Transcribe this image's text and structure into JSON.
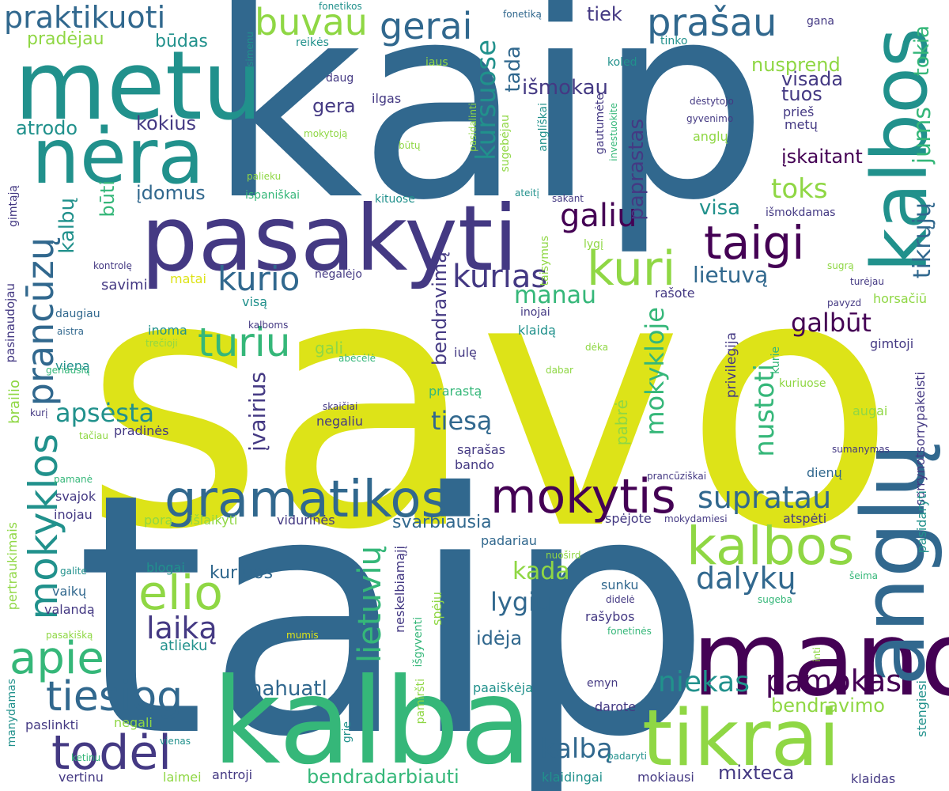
{
  "palette": {
    "yellow": "#dde318",
    "lime": "#8fd744",
    "green": "#35b779",
    "teal": "#21918c",
    "blue": "#31688e",
    "indigo": "#443983",
    "purple": "#440154"
  },
  "words": [
    {
      "text": "savo",
      "c": "yellow"
    },
    {
      "text": "taip",
      "c": "blue"
    },
    {
      "text": "kaip",
      "c": "blue"
    },
    {
      "text": "kalba",
      "c": "green"
    },
    {
      "text": "mano",
      "c": "purple"
    },
    {
      "text": "pasakyti",
      "c": "indigo"
    },
    {
      "text": "metu",
      "c": "teal"
    },
    {
      "text": "nėra",
      "c": "teal"
    },
    {
      "text": "anglų",
      "c": "blue"
    },
    {
      "text": "kalbos",
      "c": "teal"
    },
    {
      "text": "tikrai",
      "c": "lime"
    },
    {
      "text": "gramatikos",
      "c": "blue"
    },
    {
      "text": "mokytis",
      "c": "purple"
    },
    {
      "text": "kalbos",
      "c": "lime"
    },
    {
      "text": "taigi",
      "c": "purple"
    },
    {
      "text": "kuri",
      "c": "lime"
    },
    {
      "text": "todėl",
      "c": "indigo"
    },
    {
      "text": "tiesiog",
      "c": "blue"
    },
    {
      "text": "elio",
      "c": "lime"
    },
    {
      "text": "apie",
      "c": "green"
    },
    {
      "text": "turiu",
      "c": "green"
    },
    {
      "text": "mokyklos",
      "c": "teal"
    },
    {
      "text": "prancūzų",
      "c": "blue"
    },
    {
      "text": "gerai",
      "c": "blue"
    },
    {
      "text": "prašau",
      "c": "blue"
    },
    {
      "text": "buvau",
      "c": "lime"
    },
    {
      "text": "praktikuoti",
      "c": "blue"
    },
    {
      "text": "pamokas",
      "c": "purple"
    },
    {
      "text": "kurio",
      "c": "blue"
    },
    {
      "text": "kurias",
      "c": "indigo"
    },
    {
      "text": "galiu",
      "c": "purple"
    },
    {
      "text": "supratau",
      "c": "blue"
    },
    {
      "text": "dalykų",
      "c": "blue"
    },
    {
      "text": "niekas",
      "c": "teal"
    },
    {
      "text": "lietuvių",
      "c": "green"
    },
    {
      "text": "laiką",
      "c": "indigo"
    },
    {
      "text": "kalbą",
      "c": "blue"
    },
    {
      "text": "kursuose",
      "c": "teal"
    },
    {
      "text": "mokykloje",
      "c": "green"
    },
    {
      "text": "nustoti",
      "c": "green"
    },
    {
      "text": "galbūt",
      "c": "purple"
    },
    {
      "text": "tikrųjų",
      "c": "blue"
    },
    {
      "text": "jums",
      "c": "green"
    },
    {
      "text": "tokia",
      "c": "green"
    },
    {
      "text": "apsėsta",
      "c": "teal"
    },
    {
      "text": "tiesą",
      "c": "blue"
    },
    {
      "text": "kada",
      "c": "lime"
    },
    {
      "text": "lygiu",
      "c": "blue"
    },
    {
      "text": "manau",
      "c": "green"
    },
    {
      "text": "paprastas",
      "c": "indigo"
    },
    {
      "text": "įvairius",
      "c": "indigo"
    },
    {
      "text": "toks",
      "c": "lime"
    },
    {
      "text": "nahuatl",
      "c": "blue"
    },
    {
      "text": "mixteca",
      "c": "indigo"
    },
    {
      "text": "bendravimo",
      "c": "lime"
    },
    {
      "text": "bendradarbiauti",
      "c": "green"
    },
    {
      "text": "visa",
      "c": "teal"
    },
    {
      "text": "lietuvą",
      "c": "blue"
    },
    {
      "text": "išmokau",
      "c": "indigo"
    },
    {
      "text": "tiek",
      "c": "indigo"
    },
    {
      "text": "tada",
      "c": "blue"
    },
    {
      "text": "nusprend",
      "c": "lime"
    },
    {
      "text": "visada",
      "c": "indigo"
    },
    {
      "text": "tuos",
      "c": "indigo"
    },
    {
      "text": "įskaitant",
      "c": "purple"
    },
    {
      "text": "kokius",
      "c": "indigo"
    },
    {
      "text": "atrodo",
      "c": "teal"
    },
    {
      "text": "pradėjau",
      "c": "lime"
    },
    {
      "text": "būdas",
      "c": "teal"
    },
    {
      "text": "įdomus",
      "c": "blue"
    },
    {
      "text": "būti",
      "c": "green"
    },
    {
      "text": "kalbų",
      "c": "teal"
    },
    {
      "text": "gera",
      "c": "indigo"
    },
    {
      "text": "bendravimą",
      "c": "indigo"
    },
    {
      "text": "idėja",
      "c": "blue"
    },
    {
      "text": "kuriuos",
      "c": "blue"
    },
    {
      "text": "svarbiausia",
      "c": "blue"
    },
    {
      "text": "kurie",
      "c": "green"
    },
    {
      "text": "savimi",
      "c": "indigo"
    },
    {
      "text": "brailio",
      "c": "lime"
    },
    {
      "text": "vaikų",
      "c": "blue"
    },
    {
      "text": "valandą",
      "c": "indigo"
    },
    {
      "text": "atlieku",
      "c": "teal"
    },
    {
      "text": "antroji",
      "c": "indigo"
    },
    {
      "text": "vertinu",
      "c": "indigo"
    },
    {
      "text": "laimei",
      "c": "lime"
    },
    {
      "text": "paslinkti",
      "c": "indigo"
    },
    {
      "text": "negali",
      "c": "lime"
    },
    {
      "text": "gali",
      "c": "lime"
    },
    {
      "text": "inoma",
      "c": "teal"
    },
    {
      "text": "pabrė",
      "c": "lime"
    },
    {
      "text": "privilegija",
      "c": "indigo"
    },
    {
      "text": "kuriuose",
      "c": "lime"
    },
    {
      "text": "gimtoji",
      "c": "indigo"
    },
    {
      "text": "augai",
      "c": "lime"
    },
    {
      "text": "sorrynotsorrypakeisti",
      "c": "indigo"
    },
    {
      "text": "stengiesi",
      "c": "teal"
    },
    {
      "text": "pasidaryti",
      "c": "teal"
    },
    {
      "text": "sunku",
      "c": "blue"
    },
    {
      "text": "rašybos",
      "c": "indigo"
    },
    {
      "text": "darote",
      "c": "indigo"
    },
    {
      "text": "emyn",
      "c": "indigo"
    },
    {
      "text": "paaiškėja",
      "c": "teal"
    },
    {
      "text": "klaidas",
      "c": "indigo"
    },
    {
      "text": "mokiausi",
      "c": "indigo"
    },
    {
      "text": "klaidingai",
      "c": "teal"
    },
    {
      "text": "atspėti",
      "c": "indigo"
    },
    {
      "text": "spėjote",
      "c": "indigo"
    },
    {
      "text": "dienų",
      "c": "blue"
    },
    {
      "text": "porą",
      "c": "lime"
    },
    {
      "text": "išlaikyti",
      "c": "lime"
    },
    {
      "text": "vidurinės",
      "c": "indigo"
    },
    {
      "text": "padariau",
      "c": "blue"
    },
    {
      "text": "blogai",
      "c": "teal"
    },
    {
      "text": "sąrašas",
      "c": "indigo"
    },
    {
      "text": "bando",
      "c": "indigo"
    },
    {
      "text": "prarastą",
      "c": "green"
    },
    {
      "text": "negaliu",
      "c": "indigo"
    },
    {
      "text": "inojai",
      "c": "indigo"
    },
    {
      "text": "klaidą",
      "c": "teal"
    },
    {
      "text": "rašote",
      "c": "indigo"
    },
    {
      "text": "visa",
      "c": "teal"
    },
    {
      "text": "negalėjo",
      "c": "indigo"
    },
    {
      "text": "visą",
      "c": "teal"
    },
    {
      "text": "matai",
      "c": "yellow"
    },
    {
      "text": "pradinės",
      "c": "indigo"
    },
    {
      "text": "svajok",
      "c": "indigo"
    },
    {
      "text": "inojau",
      "c": "indigo"
    },
    {
      "text": "vieną",
      "c": "teal"
    },
    {
      "text": "daugiau",
      "c": "blue"
    },
    {
      "text": "pasinaudojau",
      "c": "indigo"
    },
    {
      "text": "gimtąją",
      "c": "indigo"
    },
    {
      "text": "daug",
      "c": "indigo"
    },
    {
      "text": "ilgas",
      "c": "indigo"
    },
    {
      "text": "reikės",
      "c": "teal"
    },
    {
      "text": "iaus",
      "c": "lime"
    },
    {
      "text": "koled",
      "c": "teal"
    },
    {
      "text": "tinko",
      "c": "teal"
    },
    {
      "text": "gana",
      "c": "indigo"
    },
    {
      "text": "prieš",
      "c": "indigo"
    },
    {
      "text": "metų",
      "c": "indigo"
    },
    {
      "text": "anglų",
      "c": "lime"
    },
    {
      "text": "dėstytojo",
      "c": "indigo"
    },
    {
      "text": "gyvenimo",
      "c": "indigo"
    },
    {
      "text": "horsačiū",
      "c": "lime"
    },
    {
      "text": "turėjau",
      "c": "indigo"
    },
    {
      "text": "pavyzd",
      "c": "indigo"
    },
    {
      "text": "sugrą",
      "c": "lime"
    },
    {
      "text": "lygį",
      "c": "lime"
    },
    {
      "text": "išmokdamas",
      "c": "indigo"
    },
    {
      "text": "sakant",
      "c": "indigo"
    },
    {
      "text": "ateitį",
      "c": "teal"
    },
    {
      "text": "kituose",
      "c": "teal"
    },
    {
      "text": "ispaniškai",
      "c": "green"
    },
    {
      "text": "palieku",
      "c": "lime"
    },
    {
      "text": "mokytoją",
      "c": "lime"
    },
    {
      "text": "būtų",
      "c": "lime"
    },
    {
      "text": "kontrolę",
      "c": "indigo"
    },
    {
      "text": "aistra",
      "c": "blue"
    },
    {
      "text": "kalboms",
      "c": "indigo"
    },
    {
      "text": "trečioji",
      "c": "lime"
    },
    {
      "text": "dėka",
      "c": "lime"
    },
    {
      "text": "dabar",
      "c": "lime"
    },
    {
      "text": "abėcėlė",
      "c": "green"
    },
    {
      "text": "geriausių",
      "c": "green"
    },
    {
      "text": "skaičiai",
      "c": "indigo"
    },
    {
      "text": "kurį",
      "c": "indigo"
    },
    {
      "text": "tačiau",
      "c": "lime"
    },
    {
      "text": "pamanė",
      "c": "green"
    },
    {
      "text": "prancūziškai",
      "c": "indigo"
    },
    {
      "text": "sumanymas",
      "c": "indigo"
    },
    {
      "text": "mokydamiesi",
      "c": "indigo"
    },
    {
      "text": "nuošird",
      "c": "lime"
    },
    {
      "text": "šeima",
      "c": "green"
    },
    {
      "text": "sugeba",
      "c": "green"
    },
    {
      "text": "didelė",
      "c": "indigo"
    },
    {
      "text": "fonetinės",
      "c": "green"
    },
    {
      "text": "inti",
      "c": "lime"
    },
    {
      "text": "pertraukimais",
      "c": "lime"
    },
    {
      "text": "galite",
      "c": "teal"
    },
    {
      "text": "pasakišką",
      "c": "lime"
    },
    {
      "text": "mumis",
      "c": "yellow"
    },
    {
      "text": "manydamas",
      "c": "teal"
    },
    {
      "text": "ketinu",
      "c": "green"
    },
    {
      "text": "vienas",
      "c": "teal"
    },
    {
      "text": "grie",
      "c": "teal"
    },
    {
      "text": "pamiršti",
      "c": "lime"
    },
    {
      "text": "neskelbiamąjį",
      "c": "indigo"
    },
    {
      "text": "išgyventi",
      "c": "green"
    },
    {
      "text": "spėju",
      "c": "lime"
    },
    {
      "text": "padaryti",
      "c": "teal"
    },
    {
      "text": "iulę",
      "c": "indigo"
    },
    {
      "text": "taisymus",
      "c": "lime"
    },
    {
      "text": "anglíškai",
      "c": "teal"
    },
    {
      "text": "sugebėjau",
      "c": "lime"
    },
    {
      "text": "pasidalinti",
      "c": "lime"
    },
    {
      "text": "gautumėte",
      "c": "indigo"
    },
    {
      "text": "investuokite",
      "c": "green"
    },
    {
      "text": "atsimenu",
      "c": "teal"
    },
    {
      "text": "fonetikos",
      "c": "teal"
    },
    {
      "text": "fonetiką",
      "c": "blue"
    }
  ]
}
